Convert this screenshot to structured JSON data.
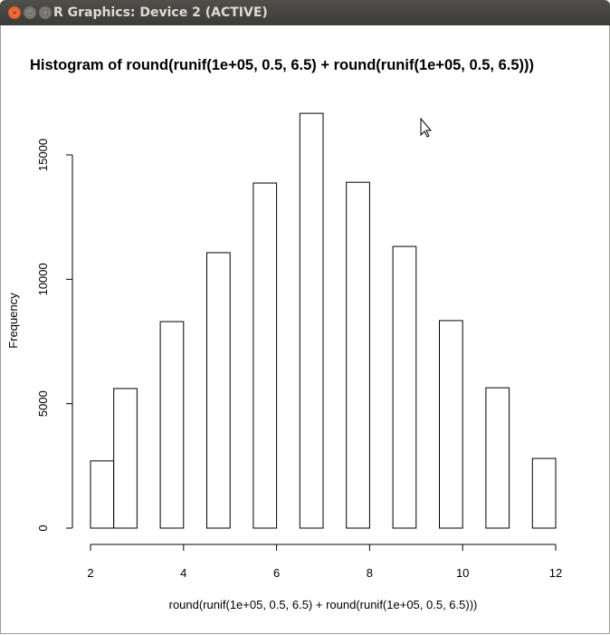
{
  "window": {
    "title": "R Graphics: Device 2 (ACTIVE)",
    "close_icon": "close-icon",
    "minimize_icon": "minimize-icon",
    "maximize_icon": "maximize-icon"
  },
  "chart_data": {
    "type": "bar",
    "title": "Histogram of round(runif(1e+05, 0.5, 6.5) + round(runif(1e+05, 0.5, 6.5)))",
    "xlabel": "round(runif(1e+05, 0.5, 6.5) + round(runif(1e+05, 0.5, 6.5)))",
    "ylabel": "Frequency",
    "breaks": [
      2,
      2.5,
      3,
      3.5,
      4,
      4.5,
      5,
      5.5,
      6,
      6.5,
      7,
      7.5,
      8,
      8.5,
      9,
      9.5,
      10,
      10.5,
      11,
      11.5,
      12
    ],
    "values": [
      2700,
      5610,
      0,
      8300,
      0,
      11070,
      0,
      13870,
      0,
      16670,
      0,
      13900,
      0,
      11320,
      0,
      8340,
      0,
      5640,
      0,
      2800
    ],
    "xlim": [
      2,
      12
    ],
    "ylim": [
      0,
      15000
    ],
    "xticks": [
      "2",
      "4",
      "6",
      "8",
      "10",
      "12"
    ],
    "yticks": [
      "0",
      "5000",
      "10000",
      "15000"
    ],
    "grid": false
  }
}
